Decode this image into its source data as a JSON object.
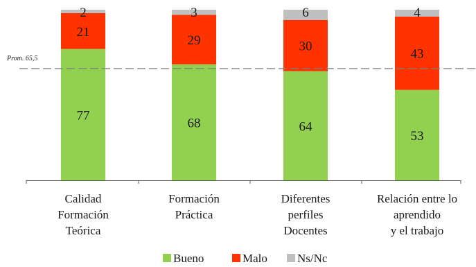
{
  "chart_data": {
    "type": "bar",
    "stacked": true,
    "categories": [
      [
        "Calidad",
        "Formación",
        "Teórica"
      ],
      [
        "Formación",
        "Práctica"
      ],
      [
        "Diferentes",
        "perfiles",
        "Docentes"
      ],
      [
        "Relación entre lo",
        "aprendido",
        "y el trabajo"
      ]
    ],
    "series": [
      {
        "name": "Bueno",
        "values": [
          77,
          68,
          64,
          53
        ],
        "color": "#92d050"
      },
      {
        "name": "Malo",
        "values": [
          21,
          29,
          30,
          43
        ],
        "color": "#ff3300"
      },
      {
        "name": "Ns/Nc",
        "values": [
          2,
          3,
          6,
          4
        ],
        "color": "#bfbfbf"
      }
    ],
    "reference_line": {
      "label": "Prom. 65,5",
      "value": 65.5,
      "style": "dashed",
      "color": "#7f7f7f"
    },
    "ylim": [
      0,
      100
    ],
    "legend_position": "bottom",
    "grid": false
  }
}
